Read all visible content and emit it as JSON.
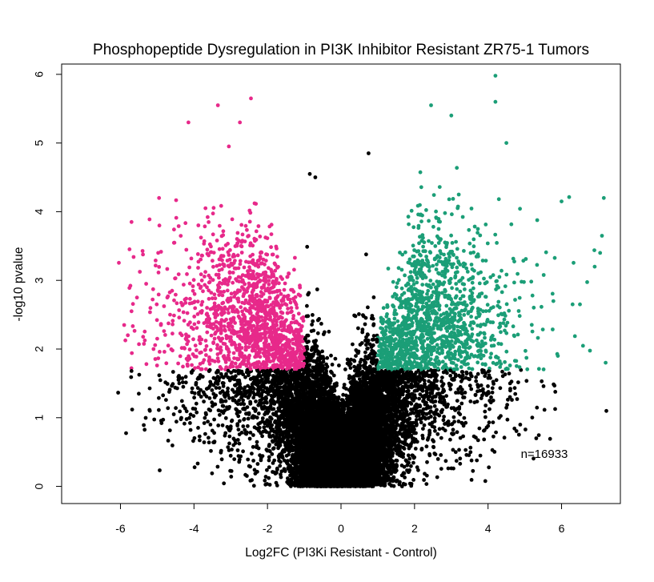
{
  "chart_data": {
    "type": "scatter",
    "title": "Phosphopeptide Dysregulation in PI3K Inhibitor Resistant ZR75-1 Tumors",
    "xlabel": "Log2FC (PI3Ki Resistant - Control)",
    "ylabel": "-log10 pvalue",
    "xlim": [
      -7.6,
      7.6
    ],
    "ylim": [
      -0.25,
      6.15
    ],
    "xticks": [
      -6,
      -4,
      -2,
      0,
      2,
      4,
      6
    ],
    "yticks": [
      0,
      1,
      2,
      3,
      4,
      5,
      6
    ],
    "annotation": "n=16933",
    "n": 16933,
    "grid": false,
    "thresholds": {
      "log2fc": 1,
      "neg_log10_pvalue": 1.7
    },
    "colors": {
      "down": "#E7298A",
      "up": "#1B9E77",
      "not_significant": "#000000"
    },
    "highlighted_points": {
      "down": [
        [
          -5.9,
          2.35
        ],
        [
          -5.7,
          2.55
        ],
        [
          -5.8,
          2.2
        ],
        [
          -5.55,
          2.75
        ],
        [
          -5.3,
          2.95
        ],
        [
          -5.1,
          2.0
        ],
        [
          -5.0,
          2.15
        ],
        [
          -4.9,
          2.35
        ],
        [
          -4.7,
          2.05
        ],
        [
          -4.95,
          4.2
        ],
        [
          -4.15,
          5.3
        ],
        [
          -3.35,
          5.55
        ],
        [
          -2.45,
          5.65
        ],
        [
          -2.75,
          5.3
        ],
        [
          -3.05,
          4.95
        ],
        [
          -5.7,
          3.85
        ]
      ],
      "up": [
        [
          7.2,
          1.8
        ],
        [
          7.05,
          3.4
        ],
        [
          6.9,
          3.2
        ],
        [
          7.1,
          3.65
        ],
        [
          7.15,
          4.2
        ],
        [
          6.5,
          2.65
        ],
        [
          6.3,
          2.65
        ],
        [
          5.9,
          1.9
        ],
        [
          4.2,
          5.98
        ],
        [
          4.2,
          5.6
        ],
        [
          2.45,
          5.55
        ],
        [
          3.0,
          5.4
        ],
        [
          4.5,
          5.0
        ],
        [
          6.0,
          4.15
        ]
      ],
      "not_significant": [
        [
          -5.7,
          1.68
        ],
        [
          -5.5,
          1.35
        ],
        [
          -5.2,
          1.1
        ],
        [
          -4.55,
          1.05
        ],
        [
          -4.2,
          0.98
        ],
        [
          4.0,
          0.88
        ],
        [
          4.6,
          1.5
        ],
        [
          1.95,
          0.45
        ],
        [
          -0.85,
          4.55
        ],
        [
          -0.7,
          4.5
        ],
        [
          0.75,
          4.85
        ]
      ]
    }
  }
}
